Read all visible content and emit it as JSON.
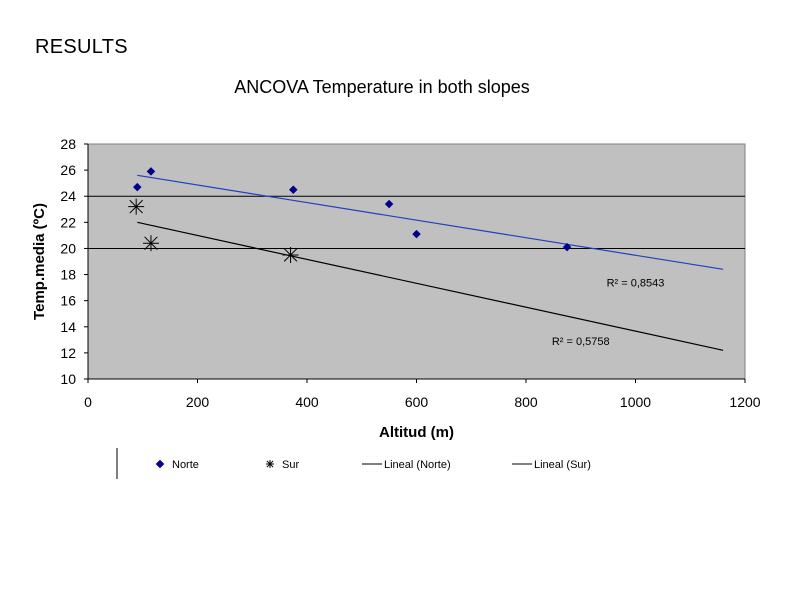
{
  "page": {
    "heading": "RESULTS",
    "subtitle": "ANCOVA Temperature in both slopes"
  },
  "chart_data": {
    "type": "scatter",
    "xlabel": "Altitud (m)",
    "ylabel": "Temp.media (ºC)",
    "xlim": [
      0,
      1200
    ],
    "ylim": [
      10,
      28
    ],
    "x_ticks": [
      "0",
      "200",
      "400",
      "600",
      "800",
      "1000",
      "1200"
    ],
    "y_ticks": [
      "10",
      "12",
      "14",
      "16",
      "18",
      "20",
      "22",
      "24",
      "26",
      "28"
    ],
    "grid": "horizontal at 20 and 24",
    "plot_background": "#c0c0c0",
    "series": [
      {
        "name": "Norte",
        "marker": "diamond",
        "color": "#00008b",
        "points": [
          {
            "x": 90,
            "y": 24.7
          },
          {
            "x": 115,
            "y": 25.9
          },
          {
            "x": 375,
            "y": 24.5
          },
          {
            "x": 550,
            "y": 23.4
          },
          {
            "x": 600,
            "y": 21.1
          },
          {
            "x": 875,
            "y": 20.1
          }
        ]
      },
      {
        "name": "Sur",
        "marker": "star",
        "color": "#000000",
        "points": [
          {
            "x": 88,
            "y": 23.2
          },
          {
            "x": 115,
            "y": 20.4
          },
          {
            "x": 370,
            "y": 19.5
          }
        ]
      },
      {
        "name": "Lineal (Norte)",
        "type": "line",
        "color": "#1f3fbf",
        "points": [
          {
            "x": 90,
            "y": 25.6
          },
          {
            "x": 1160,
            "y": 18.4
          }
        ]
      },
      {
        "name": "Lineal (Sur)",
        "type": "line",
        "color": "#000000",
        "points": [
          {
            "x": 90,
            "y": 22.0
          },
          {
            "x": 1160,
            "y": 12.2
          }
        ]
      }
    ],
    "annotations": [
      {
        "text": "R² = 0,8543",
        "at_x": 1000,
        "at_y": 17.1
      },
      {
        "text": "R² = 0,5758",
        "at_x": 900,
        "at_y": 12.6
      }
    ],
    "legend": {
      "placement": "bottom",
      "items": [
        "Norte",
        "Sur",
        "Lineal (Norte)",
        "Lineal (Sur)"
      ]
    }
  }
}
